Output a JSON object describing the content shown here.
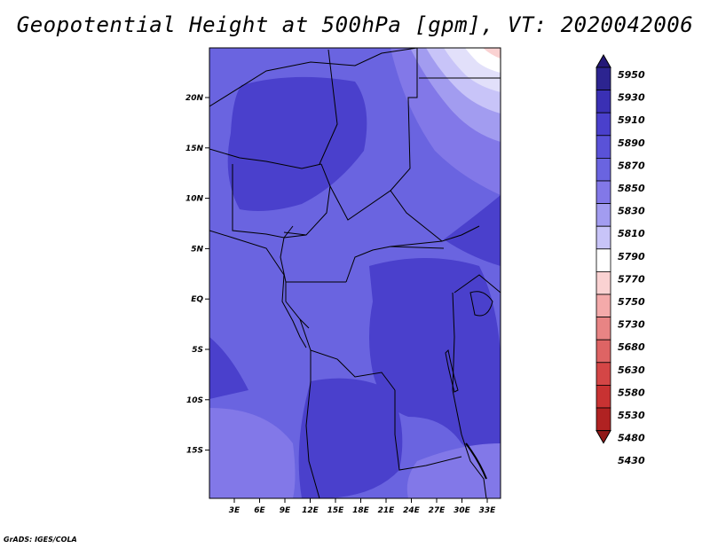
{
  "title": "Geopotential Height at 500hPa [gpm], VT: 2020042006",
  "credit": "GrADS: IGES/COLA",
  "map": {
    "lat_labels": [
      "20N",
      "15N",
      "10N",
      "5N",
      "EQ",
      "5S",
      "10S",
      "15S"
    ],
    "lon_labels": [
      "3E",
      "6E",
      "9E",
      "12E",
      "15E",
      "18E",
      "21E",
      "24E",
      "27E",
      "30E",
      "33E"
    ]
  },
  "colorbar": {
    "labels": [
      "5950",
      "5930",
      "5910",
      "5890",
      "5870",
      "5850",
      "5830",
      "5810",
      "5790",
      "5770",
      "5750",
      "5730",
      "5680",
      "5630",
      "5580",
      "5530",
      "5480",
      "5430"
    ],
    "colors": [
      "#241878",
      "#2c2490",
      "#3a30b4",
      "#4a40cc",
      "#5a52d8",
      "#6a64e0",
      "#8278e8",
      "#a29cf0",
      "#c8c4f8",
      "#ffffff",
      "#fad2d2",
      "#f4aaaa",
      "#e88484",
      "#de6464",
      "#d44646",
      "#c83232",
      "#b02222",
      "#901818"
    ]
  }
}
